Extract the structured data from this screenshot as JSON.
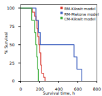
{
  "chart_data": {
    "type": "line",
    "xlabel": "Survival time, h",
    "ylabel": "% Survival",
    "xlim": [
      0,
      800
    ],
    "ylim": [
      0,
      105
    ],
    "xticks": [
      0,
      200,
      400,
      600,
      800
    ],
    "yticks": [
      0,
      25,
      50,
      75,
      100
    ],
    "legend": "upper right",
    "series": [
      {
        "name": "RM-Kikwit model",
        "color": "#d9342b",
        "x": [
          0,
          120,
          120,
          145,
          145,
          160,
          160,
          170,
          170,
          180,
          180,
          190,
          190,
          200,
          200,
          210,
          210,
          220,
          220,
          240,
          240,
          255,
          255
        ],
        "values": [
          100,
          100,
          94.4,
          94.4,
          88.9,
          88.9,
          83.3,
          83.3,
          72.2,
          72.2,
          61.1,
          61.1,
          50.0,
          50.0,
          38.9,
          38.9,
          22.2,
          22.2,
          11.1,
          11.1,
          5.6,
          5.6,
          0
        ]
      },
      {
        "name": "RM-Makona model",
        "color": "#3a5dbe",
        "x": [
          0,
          160,
          160,
          185,
          185,
          205,
          205,
          560,
          560,
          590,
          590,
          640,
          640
        ],
        "values": [
          100,
          100,
          83.3,
          83.3,
          66.7,
          66.7,
          50.0,
          50.0,
          33.3,
          33.3,
          16.7,
          16.7,
          0
        ]
      },
      {
        "name": "CM-Kikwit model",
        "color": "#3aad3a",
        "x": [
          0,
          115,
          115,
          145,
          145,
          158,
          158,
          168,
          168,
          178,
          178,
          185,
          185
        ],
        "values": [
          100,
          100,
          83.3,
          83.3,
          66.7,
          66.7,
          50.0,
          50.0,
          33.3,
          33.3,
          16.7,
          16.7,
          0
        ]
      }
    ]
  }
}
